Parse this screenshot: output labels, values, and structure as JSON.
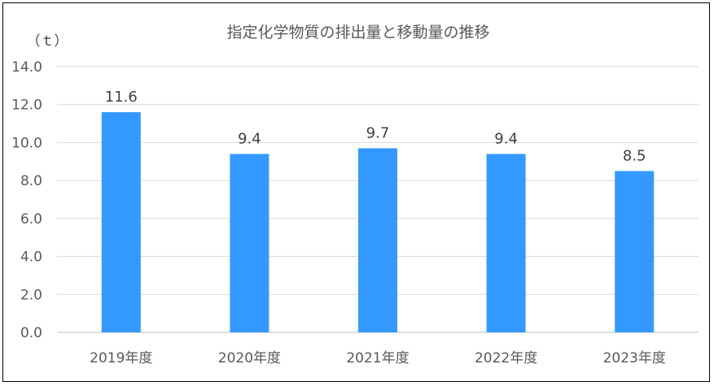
{
  "chart_data": {
    "type": "bar",
    "title": "指定化学物質の排出量と移動量の推移",
    "ylabel": "（ｔ）",
    "xlabel": "",
    "categories": [
      "2019年度",
      "2020年度",
      "2021年度",
      "2022年度",
      "2023年度"
    ],
    "values": [
      11.6,
      9.4,
      9.7,
      9.4,
      8.5
    ],
    "data_labels": [
      "11.6",
      "9.4",
      "9.7",
      "9.4",
      "8.5"
    ],
    "yticks": [
      "0.0",
      "2.0",
      "4.0",
      "6.0",
      "8.0",
      "10.0",
      "12.0",
      "14.0"
    ],
    "ylim": [
      0,
      14
    ],
    "grid": true,
    "legend": "none",
    "bar_color": "#3399ff"
  }
}
